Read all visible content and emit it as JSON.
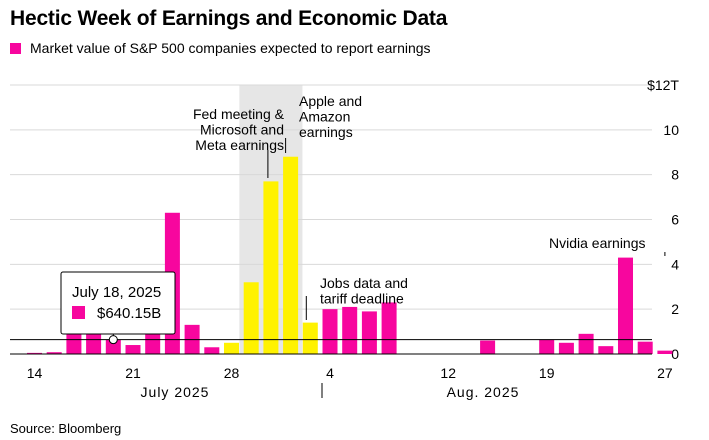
{
  "title": "Hectic Week of Earnings and Economic Data",
  "source": "Source: Bloomberg",
  "colors": {
    "earnings": "#f7069e",
    "highlight": "#fff200",
    "shade": "#e6e6e6",
    "grid": "#d9d9d9",
    "axis": "#000000",
    "tooltip_border": "#000000"
  },
  "chart_data": {
    "type": "bar",
    "legend": [
      {
        "name": "Market value of S&P 500 companies expected to report earnings",
        "color": "#f7069e"
      }
    ],
    "y_unit_label": "$12T",
    "ylim": [
      0,
      12
    ],
    "yticks": [
      0,
      2,
      4,
      6,
      8,
      10,
      12
    ],
    "ytick_labels": [
      "0",
      "2",
      "4",
      "6",
      "8",
      "10",
      "$12T"
    ],
    "x_tick_labels": [
      "14",
      "21",
      "28",
      "4",
      "12",
      "19",
      "27"
    ],
    "month_labels": [
      "July 2025",
      "Aug. 2025"
    ],
    "categories": [
      "Jul 14",
      "Jul 15",
      "Jul 16",
      "Jul 17",
      "Jul 18",
      "Jul 21",
      "Jul 22",
      "Jul 23",
      "Jul 24",
      "Jul 25",
      "Jul 28",
      "Jul 29",
      "Jul 30",
      "Jul 31",
      "Aug 1",
      "Aug 4",
      "Aug 5",
      "Aug 6",
      "Aug 7",
      "Aug 8",
      "Aug 11",
      "Aug 12",
      "Aug 13",
      "Aug 14",
      "Aug 15",
      "Aug 18",
      "Aug 19",
      "Aug 20",
      "Aug 21",
      "Aug 22",
      "Aug 25",
      "Aug 26",
      "Aug 27",
      "Aug 28",
      "Aug 29"
    ],
    "values": [
      0.05,
      0.08,
      1.6,
      1.4,
      0.64,
      0.4,
      1.1,
      6.3,
      1.3,
      0.3,
      0.5,
      3.2,
      7.7,
      8.8,
      1.4,
      2.0,
      2.1,
      1.9,
      2.3,
      0.0,
      0.0,
      0.0,
      0.0,
      0.6,
      0.0,
      0.0,
      0.65,
      0.5,
      0.9,
      0.35,
      4.3,
      0.55,
      0.15,
      0,
      0
    ],
    "highlight_categories": [
      "Jul 28",
      "Jul 29",
      "Jul 30",
      "Jul 31",
      "Aug 1"
    ],
    "shaded_range": [
      "Jul 29",
      "Jul 31"
    ],
    "annotations": [
      {
        "text": [
          "Fed meeting &",
          "Microsoft and",
          "Meta earnings"
        ],
        "category": "Jul 30"
      },
      {
        "text": [
          "Apple and",
          "Amazon",
          "earnings"
        ],
        "category": "Jul 31"
      },
      {
        "text": [
          "Jobs data and",
          "tariff deadline"
        ],
        "category": "Aug 1"
      },
      {
        "text": [
          "Nvidia earnings"
        ],
        "category": "Aug 27"
      }
    ],
    "tooltip": {
      "date": "July 18, 2025",
      "value": "$640.15B",
      "category": "Jul 18"
    },
    "reference_value": 0.64,
    "grid": true,
    "legend_position": "top-left"
  }
}
